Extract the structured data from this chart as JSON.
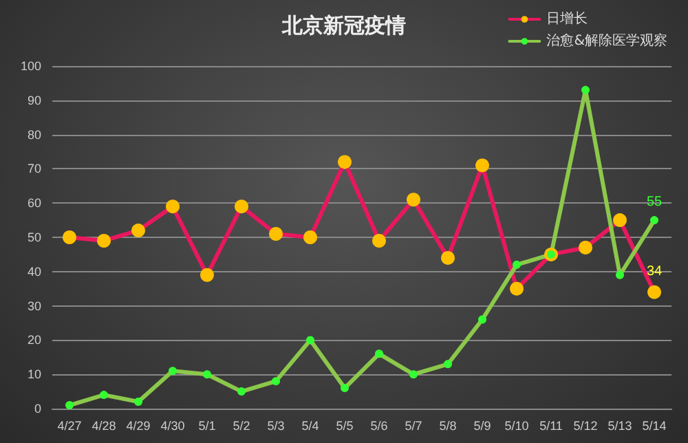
{
  "chart_data": {
    "type": "line",
    "title": "北京新冠疫情",
    "categories": [
      "4/27",
      "4/28",
      "4/29",
      "4/30",
      "5/1",
      "5/2",
      "5/3",
      "5/4",
      "5/5",
      "5/6",
      "5/7",
      "5/8",
      "5/9",
      "5/10",
      "5/11",
      "5/12",
      "5/13",
      "5/14"
    ],
    "series": [
      {
        "name": "日增长",
        "color": "#e8185f",
        "values": [
          50,
          49,
          52,
          59,
          39,
          59,
          51,
          50,
          72,
          49,
          61,
          44,
          71,
          35,
          45,
          47,
          55,
          34
        ],
        "value_labels": [
          null,
          null,
          null,
          null,
          null,
          null,
          null,
          null,
          null,
          null,
          null,
          null,
          null,
          null,
          null,
          null,
          null,
          "34"
        ]
      },
      {
        "name": "治愈&解除医学观察",
        "color": "#8cc84b",
        "values": [
          1,
          4,
          2,
          11,
          10,
          5,
          8,
          20,
          6,
          16,
          10,
          13,
          26,
          42,
          45,
          93,
          39,
          55
        ],
        "value_labels": [
          null,
          null,
          null,
          null,
          null,
          null,
          null,
          null,
          null,
          null,
          null,
          null,
          null,
          null,
          null,
          null,
          null,
          "55"
        ]
      }
    ],
    "ylim": [
      0,
      100
    ],
    "yticks": [
      0,
      10,
      20,
      30,
      40,
      50,
      60,
      70,
      80,
      90,
      100
    ],
    "grid": "y",
    "legend": "top right",
    "marker": "circle",
    "line_style": "solid"
  }
}
